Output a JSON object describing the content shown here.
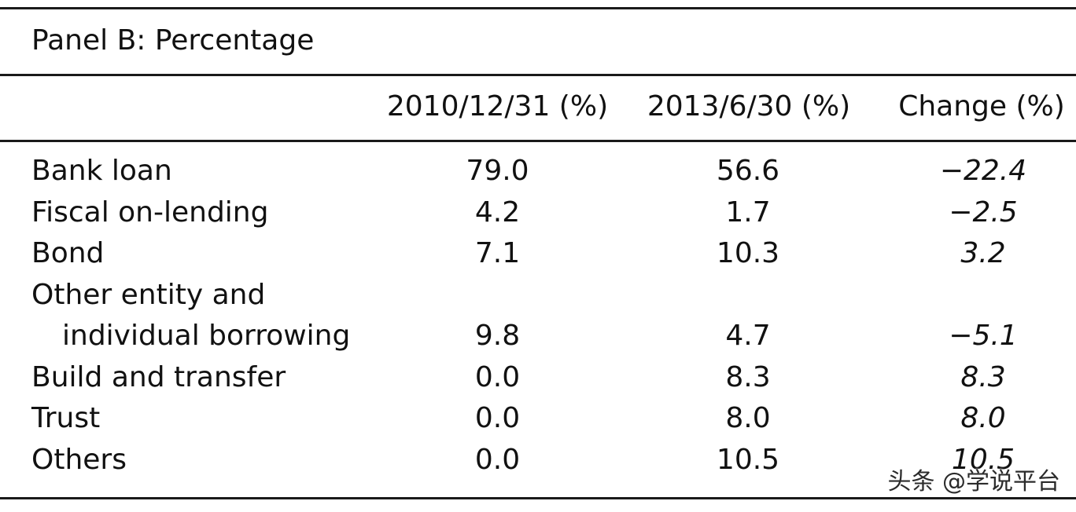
{
  "panel_title": "Panel B: Percentage",
  "headers": {
    "col1": "2010/12/31 (%)",
    "col2": "2013/6/30 (%)",
    "col3": "Change (%)"
  },
  "rows": [
    {
      "label": "Bank loan",
      "v1": "79.0",
      "v2": "56.6",
      "v3": "−22.4"
    },
    {
      "label": "Fiscal on-lending",
      "v1": "4.2",
      "v2": "1.7",
      "v3": "−2.5"
    },
    {
      "label": "Bond",
      "v1": "7.1",
      "v2": "10.3",
      "v3": "3.2"
    },
    {
      "label": "Other entity and",
      "v1": "",
      "v2": "",
      "v3": ""
    },
    {
      "label": "individual borrowing",
      "v1": "9.8",
      "v2": "4.7",
      "v3": "−5.1"
    },
    {
      "label": "Build and transfer",
      "v1": "0.0",
      "v2": "8.3",
      "v3": "8.3"
    },
    {
      "label": "Trust",
      "v1": "0.0",
      "v2": "8.0",
      "v3": "8.0"
    },
    {
      "label": "Others",
      "v1": "0.0",
      "v2": "10.5",
      "v3": "10.5"
    }
  ],
  "watermark": "头条 @学说平台"
}
